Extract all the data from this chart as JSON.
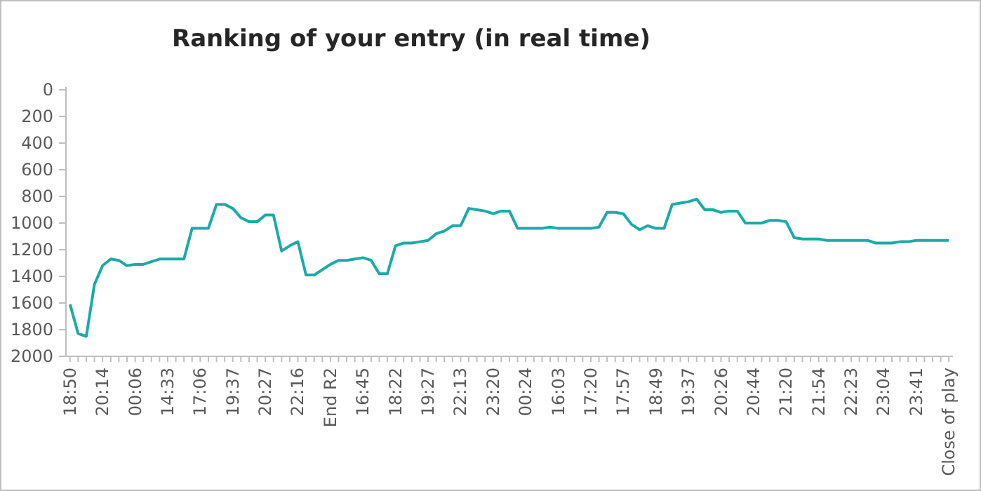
{
  "chart_data": {
    "type": "line",
    "title": "Ranking of your entry (in real time)",
    "categories": [
      "18:50",
      null,
      null,
      null,
      "20:14",
      null,
      null,
      null,
      "00:06",
      null,
      null,
      null,
      "14:33",
      null,
      null,
      null,
      "17:06",
      null,
      null,
      null,
      "19:37",
      null,
      null,
      null,
      "20:27",
      null,
      null,
      null,
      "22:16",
      null,
      null,
      null,
      "End R2",
      null,
      null,
      null,
      "16:45",
      null,
      null,
      null,
      "18:22",
      null,
      null,
      null,
      "19:27",
      null,
      null,
      null,
      "22:13",
      null,
      null,
      null,
      "23:20",
      null,
      null,
      null,
      "00:24",
      null,
      null,
      null,
      "16:03",
      null,
      null,
      null,
      "17:20",
      null,
      null,
      null,
      "17:57",
      null,
      null,
      null,
      "18:49",
      null,
      null,
      null,
      "19:37",
      null,
      null,
      null,
      "20:26",
      null,
      null,
      null,
      "20:44",
      null,
      null,
      null,
      "21:20",
      null,
      null,
      null,
      "21:54",
      null,
      null,
      null,
      "22:23",
      null,
      null,
      null,
      "23:04",
      null,
      null,
      null,
      "23:41",
      null,
      null,
      null,
      "Close of play"
    ],
    "series": [
      {
        "color": "#1aaba8",
        "values": [
          1610,
          1830,
          1850,
          1460,
          1320,
          1270,
          1280,
          1320,
          1310,
          1310,
          1290,
          1270,
          1270,
          1270,
          1270,
          1040,
          1040,
          1040,
          860,
          860,
          890,
          960,
          990,
          990,
          940,
          940,
          1210,
          1170,
          1140,
          1390,
          1390,
          1350,
          1310,
          1280,
          1280,
          1270,
          1260,
          1280,
          1380,
          1380,
          1170,
          1150,
          1150,
          1140,
          1130,
          1080,
          1060,
          1020,
          1020,
          890,
          900,
          910,
          930,
          910,
          910,
          1040,
          1040,
          1040,
          1040,
          1030,
          1040,
          1040,
          1040,
          1040,
          1040,
          1030,
          920,
          920,
          930,
          1010,
          1050,
          1020,
          1040,
          1040,
          860,
          850,
          840,
          820,
          900,
          900,
          920,
          910,
          910,
          1000,
          1000,
          1000,
          980,
          980,
          990,
          1110,
          1120,
          1120,
          1120,
          1130,
          1130,
          1130,
          1130,
          1130,
          1130,
          1150,
          1150,
          1150,
          1140,
          1140,
          1130,
          1130,
          1130,
          1130,
          1130
        ]
      }
    ],
    "ylim": [
      2000,
      0
    ],
    "yticks": [
      0,
      200,
      400,
      600,
      800,
      1000,
      1200,
      1400,
      1600,
      1800,
      2000
    ],
    "grid": false
  }
}
